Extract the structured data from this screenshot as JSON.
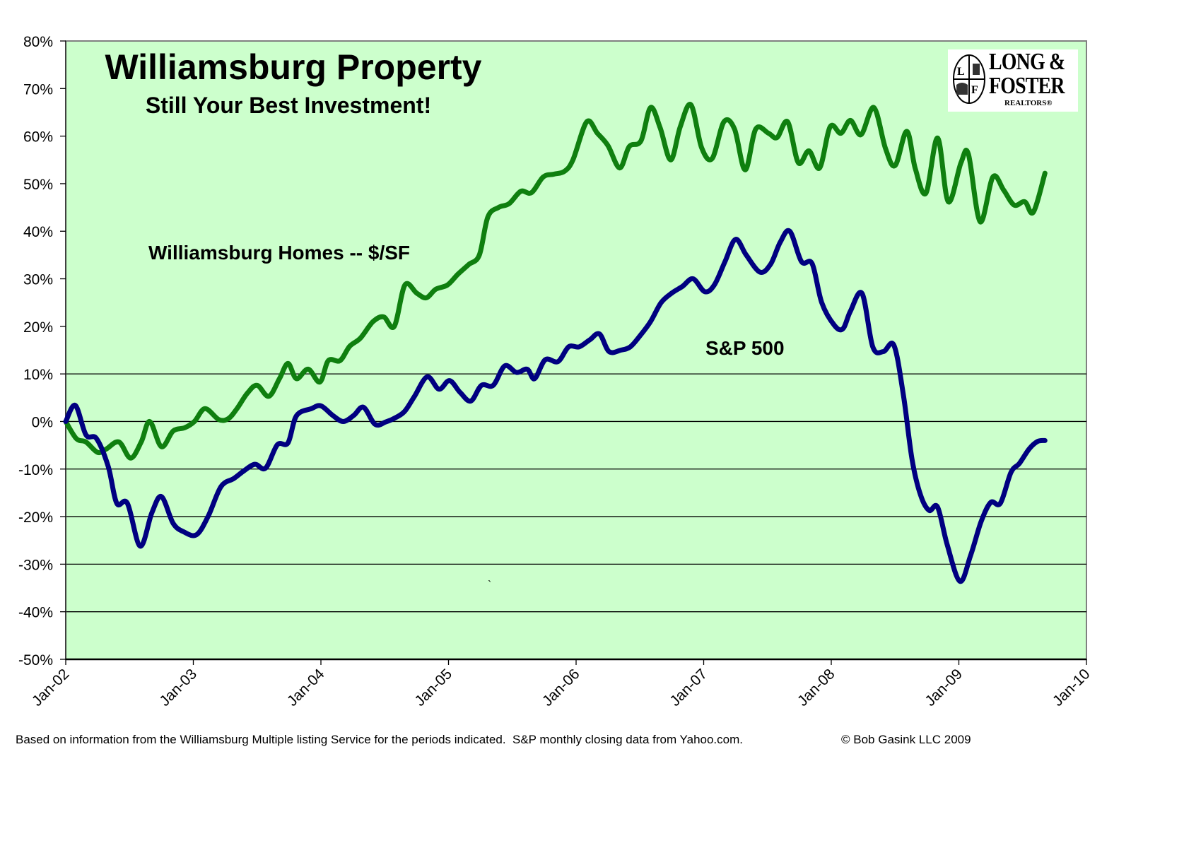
{
  "chart_data": {
    "type": "line",
    "title": "Williamsburg Property",
    "subtitle": "Still Your Best Investment!",
    "xlabel": "",
    "ylabel": "",
    "x_axis": {
      "unit": "months since Jan-02",
      "range": [
        0,
        96
      ],
      "tick_labels": [
        "Jan-02",
        "Jan-03",
        "Jan-04",
        "Jan-05",
        "Jan-06",
        "Jan-07",
        "Jan-08",
        "Jan-09",
        "Jan-10"
      ]
    },
    "y_axis": {
      "range": [
        -50,
        80
      ],
      "tick_values": [
        80,
        70,
        60,
        50,
        40,
        30,
        20,
        10,
        0,
        -10,
        -20,
        -30,
        -40,
        -50
      ],
      "tick_labels": [
        "80%",
        "70%",
        "60%",
        "50%",
        "40%",
        "30%",
        "20%",
        "10%",
        "0%",
        "-10%",
        "-20%",
        "-30%",
        "-40%",
        "-50%"
      ],
      "gridlines_at": [
        10,
        0,
        -10,
        -20,
        -30,
        -40
      ]
    },
    "plot_background": "#ccffcc",
    "series": [
      {
        "name": "Williamsburg Homes -- $/SF",
        "color": "#0f7f0f",
        "label_position": "upper-left of plot",
        "points": [
          [
            0,
            0
          ],
          [
            1,
            -3.6
          ],
          [
            1.9,
            -4.3
          ],
          [
            3,
            -6.5
          ],
          [
            3.8,
            -5.8
          ],
          [
            5,
            -4.3
          ],
          [
            6.1,
            -7.7
          ],
          [
            7.1,
            -4.3
          ],
          [
            7.9,
            0
          ],
          [
            9,
            -5.3
          ],
          [
            10.1,
            -2
          ],
          [
            11.2,
            -1.3
          ],
          [
            12.1,
            0
          ],
          [
            13.1,
            2.7
          ],
          [
            14.4,
            0.4
          ],
          [
            15.3,
            0.6
          ],
          [
            16.1,
            2.7
          ],
          [
            17.1,
            6
          ],
          [
            18,
            7.6
          ],
          [
            19.1,
            5.3
          ],
          [
            20.1,
            9
          ],
          [
            20.9,
            12.2
          ],
          [
            21.7,
            9
          ],
          [
            22.8,
            11
          ],
          [
            23.9,
            8.3
          ],
          [
            24.7,
            12.8
          ],
          [
            25.8,
            12.8
          ],
          [
            26.7,
            15.8
          ],
          [
            27.7,
            17.5
          ],
          [
            28.9,
            21
          ],
          [
            29.9,
            22
          ],
          [
            30.9,
            20
          ],
          [
            31.9,
            28.7
          ],
          [
            33,
            27
          ],
          [
            33.9,
            26
          ],
          [
            34.8,
            27.8
          ],
          [
            35.9,
            28.7
          ],
          [
            36.9,
            31
          ],
          [
            37.9,
            33
          ],
          [
            38.9,
            35
          ],
          [
            39.7,
            43
          ],
          [
            40.7,
            45
          ],
          [
            41.7,
            45.8
          ],
          [
            42.8,
            48.4
          ],
          [
            43.8,
            48.1
          ],
          [
            44.9,
            51.4
          ],
          [
            45.9,
            52
          ],
          [
            46.9,
            52.6
          ],
          [
            47.7,
            55
          ],
          [
            49,
            63
          ],
          [
            50,
            60.6
          ],
          [
            51,
            58
          ],
          [
            52.1,
            53.3
          ],
          [
            53,
            57.8
          ],
          [
            54.1,
            59
          ],
          [
            55,
            66
          ],
          [
            55.9,
            61.8
          ],
          [
            56.9,
            55
          ],
          [
            57.8,
            62
          ],
          [
            58.8,
            66.6
          ],
          [
            59.8,
            57.6
          ],
          [
            60.8,
            55.3
          ],
          [
            61.9,
            63
          ],
          [
            62.9,
            61.5
          ],
          [
            63.9,
            52.9
          ],
          [
            64.9,
            61.5
          ],
          [
            66.1,
            60.6
          ],
          [
            66.9,
            59.7
          ],
          [
            67.9,
            63
          ],
          [
            68.9,
            54.4
          ],
          [
            69.9,
            56.9
          ],
          [
            70.9,
            53.3
          ],
          [
            71.9,
            62
          ],
          [
            72.9,
            60.6
          ],
          [
            73.8,
            63.3
          ],
          [
            74.8,
            60.3
          ],
          [
            76,
            66
          ],
          [
            77.1,
            57.4
          ],
          [
            78,
            53.8
          ],
          [
            79.1,
            61
          ],
          [
            79.9,
            53.2
          ],
          [
            80.9,
            48
          ],
          [
            82,
            59.6
          ],
          [
            83,
            46.2
          ],
          [
            84.2,
            54.4
          ],
          [
            84.9,
            56.2
          ],
          [
            86,
            42
          ],
          [
            87.2,
            51.4
          ],
          [
            88.2,
            48.7
          ],
          [
            89.2,
            45.5
          ],
          [
            90.2,
            46.2
          ],
          [
            91,
            44
          ],
          [
            92.1,
            52.2
          ]
        ]
      },
      {
        "name": "S&P 500",
        "color": "#000080",
        "label_position": "center-right of plot",
        "points": [
          [
            0,
            0
          ],
          [
            0.9,
            3.4
          ],
          [
            1.9,
            -2.8
          ],
          [
            2.9,
            -3.6
          ],
          [
            4,
            -9.5
          ],
          [
            4.8,
            -17.2
          ],
          [
            5.8,
            -17.2
          ],
          [
            7,
            -26.2
          ],
          [
            8.1,
            -19.2
          ],
          [
            9,
            -15.8
          ],
          [
            10.1,
            -21.4
          ],
          [
            11.1,
            -23.2
          ],
          [
            12.3,
            -23.8
          ],
          [
            13.4,
            -19.9
          ],
          [
            14.6,
            -13.7
          ],
          [
            15.8,
            -12
          ],
          [
            16.8,
            -10.3
          ],
          [
            17.8,
            -9
          ],
          [
            18.8,
            -9.8
          ],
          [
            19.9,
            -4.9
          ],
          [
            20.9,
            -4.5
          ],
          [
            21.7,
            1.2
          ],
          [
            23.1,
            2.7
          ],
          [
            24,
            3.3
          ],
          [
            25.1,
            1.3
          ],
          [
            26.1,
            0
          ],
          [
            27.1,
            1.3
          ],
          [
            28,
            3
          ],
          [
            29.1,
            -0.6
          ],
          [
            30.1,
            -0.1
          ],
          [
            31.1,
            0.9
          ],
          [
            31.9,
            2.2
          ],
          [
            32.8,
            5.3
          ],
          [
            34,
            9.4
          ],
          [
            35.1,
            6.8
          ],
          [
            36.1,
            8.6
          ],
          [
            37.1,
            6.1
          ],
          [
            38.1,
            4.3
          ],
          [
            39.1,
            7.6
          ],
          [
            40.2,
            7.6
          ],
          [
            41.3,
            11.7
          ],
          [
            42.4,
            10.3
          ],
          [
            43.4,
            11
          ],
          [
            44.1,
            9
          ],
          [
            45.1,
            13
          ],
          [
            46.3,
            12.6
          ],
          [
            47.3,
            15.7
          ],
          [
            48.3,
            15.7
          ],
          [
            49.3,
            17.2
          ],
          [
            50.2,
            18.4
          ],
          [
            51.1,
            14.7
          ],
          [
            52.2,
            15
          ],
          [
            53.1,
            15.7
          ],
          [
            54,
            18
          ],
          [
            55,
            21
          ],
          [
            56,
            25
          ],
          [
            57,
            27
          ],
          [
            58,
            28.4
          ],
          [
            59,
            30
          ],
          [
            60.1,
            27.3
          ],
          [
            61,
            28.7
          ],
          [
            62,
            33.6
          ],
          [
            63,
            38.3
          ],
          [
            64,
            35
          ],
          [
            65.3,
            31.4
          ],
          [
            66.3,
            33.1
          ],
          [
            67.2,
            37.7
          ],
          [
            68.1,
            40
          ],
          [
            69.2,
            33.6
          ],
          [
            70.2,
            33.2
          ],
          [
            71.1,
            25
          ],
          [
            72.3,
            20.2
          ],
          [
            73.1,
            19.5
          ],
          [
            73.8,
            23.2
          ],
          [
            74.9,
            26.9
          ],
          [
            75.9,
            15.7
          ],
          [
            76.9,
            14.7
          ],
          [
            77.9,
            16
          ],
          [
            78.8,
            5.3
          ],
          [
            79.6,
            -8
          ],
          [
            80.4,
            -15.5
          ],
          [
            81.2,
            -18.7
          ],
          [
            82,
            -18
          ],
          [
            82.9,
            -25.9
          ],
          [
            84.1,
            -33.6
          ],
          [
            85.1,
            -28.2
          ],
          [
            86.1,
            -21
          ],
          [
            87,
            -17
          ],
          [
            87.9,
            -17.2
          ],
          [
            88.9,
            -10.7
          ],
          [
            89.7,
            -8.8
          ],
          [
            90.6,
            -5.8
          ],
          [
            91.4,
            -4.2
          ],
          [
            92.1,
            -4
          ]
        ]
      }
    ],
    "annotations": [
      "Williamsburg Homes -- $/SF",
      "S&P 500"
    ],
    "legend": "none (inline labels)",
    "grid": "horizontal, below 10% only"
  },
  "labels": {
    "homes_label": "Williamsburg Homes -- $/SF",
    "sp_label": "S&P 500",
    "stray_mark": "`"
  },
  "logo": {
    "line1": "LONG &",
    "line2": "FOSTER",
    "line3": "REALTORS®",
    "emblem_letters": [
      "L",
      "F"
    ]
  },
  "footer": {
    "source": "Based on information from the Williamsburg Multiple listing Service for the periods indicated.  S&P monthly closing data from Yahoo.com.",
    "copyright": "© Bob Gasink LLC 2009"
  }
}
